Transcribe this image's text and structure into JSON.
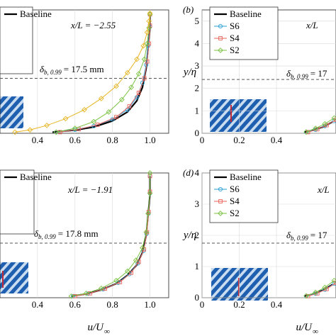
{
  "figure": {
    "x_axis_label_main": "u/U",
    "x_axis_label_sub": "∞",
    "y_axis_label": "y/η",
    "delta_symbol": "δ",
    "colors": {
      "baseline": "#000000",
      "S6": "#2a9fd6",
      "S4": "#e8635a",
      "S2": "#7cc242",
      "S2_top_left": "#e6b422",
      "dashed": "#555555",
      "inset_dark": "#1f5fb0",
      "inset_light": "#c9dcf0",
      "inset_marker": "#c0283a"
    }
  },
  "chart_data": [
    {
      "type": "line",
      "panel": "a",
      "panel_label": "",
      "annotation": "x/L = −2.55",
      "delta_label": "b, 0.99",
      "delta_value": "= 17.5 mm",
      "legend": [
        "Baseline",
        "",
        "",
        ""
      ],
      "xticks": [
        "0.4",
        "0.6",
        "0.8",
        "1.0"
      ],
      "yticks": [],
      "xlim": [
        0.2,
        1.1
      ],
      "ylim": [
        0,
        5.5
      ],
      "dashed_y": 2.45,
      "series": [
        {
          "name": "Baseline",
          "x": [
            0.48,
            0.6,
            0.7,
            0.8,
            0.88,
            0.93,
            0.96,
            0.98,
            0.99,
            1.0,
            1.0
          ],
          "y": [
            0.05,
            0.14,
            0.28,
            0.55,
            0.95,
            1.45,
            2.05,
            2.9,
            3.8,
            4.7,
            5.3
          ]
        },
        {
          "name": "S6",
          "x": [
            0.5,
            0.6,
            0.7,
            0.8,
            0.88,
            0.93,
            0.96,
            0.98,
            0.99,
            1.0,
            1.0
          ],
          "y": [
            0.05,
            0.16,
            0.32,
            0.62,
            1.05,
            1.6,
            2.25,
            3.05,
            3.9,
            4.75,
            5.3
          ]
        },
        {
          "name": "S4",
          "x": [
            0.52,
            0.62,
            0.72,
            0.82,
            0.89,
            0.94,
            0.97,
            0.985,
            0.995,
            1.0,
            1.0
          ],
          "y": [
            0.05,
            0.18,
            0.38,
            0.72,
            1.2,
            1.8,
            2.45,
            3.2,
            4.0,
            4.8,
            5.3
          ]
        },
        {
          "name": "S2",
          "x": [
            0.5,
            0.6,
            0.7,
            0.78,
            0.85,
            0.9,
            0.94,
            0.97,
            0.985,
            0.995,
            1.0
          ],
          "y": [
            0.05,
            0.22,
            0.52,
            0.95,
            1.5,
            2.05,
            2.65,
            3.3,
            4.0,
            4.7,
            5.3
          ]
        },
        {
          "name": "S2",
          "x": [
            0.28,
            0.36,
            0.45,
            0.55,
            0.65,
            0.74,
            0.82,
            0.88,
            0.93,
            0.965,
            0.985,
            0.995,
            1.0
          ],
          "y": [
            0.05,
            0.15,
            0.35,
            0.65,
            1.05,
            1.55,
            2.1,
            2.7,
            3.3,
            3.9,
            4.5,
            5.0,
            5.35
          ]
        }
      ]
    },
    {
      "type": "line",
      "panel": "b",
      "panel_label": "(b)",
      "annotation": "x/L",
      "delta_label": "b, 0.99",
      "delta_value": "= 17",
      "legend": [
        "Baseline",
        "S6",
        "S4",
        "S2"
      ],
      "xticks": [
        "0",
        "0.2",
        "0.4"
      ],
      "yticks": [
        "0",
        "1",
        "2",
        "3",
        "4",
        "5"
      ],
      "xlim": [
        0,
        0.72
      ],
      "ylim": [
        0,
        5.5
      ],
      "dashed_y": 2.4,
      "series": [
        {
          "name": "Baseline",
          "x": [
            0.55,
            0.6,
            0.65,
            0.7
          ],
          "y": [
            0.05,
            0.14,
            0.28,
            0.5
          ]
        },
        {
          "name": "S6",
          "x": [
            0.56,
            0.61,
            0.66,
            0.71
          ],
          "y": [
            0.05,
            0.16,
            0.32,
            0.55
          ]
        },
        {
          "name": "S4",
          "x": [
            0.57,
            0.62,
            0.67,
            0.72
          ],
          "y": [
            0.05,
            0.18,
            0.36,
            0.6
          ]
        },
        {
          "name": "S2",
          "x": [
            0.56,
            0.61,
            0.66,
            0.71
          ],
          "y": [
            0.06,
            0.22,
            0.42,
            0.68
          ]
        }
      ]
    },
    {
      "type": "line",
      "panel": "c",
      "panel_label": "",
      "annotation": "x/L = −1.91",
      "delta_label": "b, 0.99",
      "delta_value": "= 17.8 mm",
      "legend": [
        "Baseline",
        "",
        "",
        ""
      ],
      "xticks": [
        "0.4",
        "0.6",
        "0.8",
        "1.0"
      ],
      "yticks": [],
      "xlim": [
        0.2,
        1.1
      ],
      "ylim": [
        0,
        4
      ],
      "dashed_y": 1.75,
      "series": [
        {
          "name": "Baseline",
          "x": [
            0.58,
            0.66,
            0.74,
            0.82,
            0.88,
            0.93,
            0.96,
            0.98,
            0.99,
            1.0,
            1.0
          ],
          "y": [
            0.05,
            0.12,
            0.25,
            0.45,
            0.72,
            1.05,
            1.45,
            2.0,
            2.65,
            3.3,
            3.9
          ]
        },
        {
          "name": "S6",
          "x": [
            0.59,
            0.67,
            0.75,
            0.83,
            0.89,
            0.935,
            0.965,
            0.982,
            0.992,
            1.0,
            1.0
          ],
          "y": [
            0.05,
            0.13,
            0.27,
            0.48,
            0.76,
            1.1,
            1.5,
            2.05,
            2.7,
            3.35,
            3.9
          ]
        },
        {
          "name": "S4",
          "x": [
            0.6,
            0.68,
            0.76,
            0.84,
            0.9,
            0.94,
            0.968,
            0.984,
            0.993,
            1.0,
            1.0
          ],
          "y": [
            0.05,
            0.14,
            0.29,
            0.5,
            0.8,
            1.15,
            1.55,
            2.1,
            2.75,
            3.4,
            3.9
          ]
        },
        {
          "name": "S2",
          "x": [
            0.58,
            0.66,
            0.74,
            0.82,
            0.88,
            0.925,
            0.96,
            0.98,
            0.99,
            1.0,
            1.0
          ],
          "y": [
            0.05,
            0.14,
            0.3,
            0.55,
            0.85,
            1.2,
            1.6,
            2.1,
            2.7,
            3.35,
            4.0
          ]
        }
      ]
    },
    {
      "type": "line",
      "panel": "d",
      "panel_label": "(d)",
      "annotation": "x/L",
      "delta_label": "b, 0.99",
      "delta_value": "= 17",
      "legend": [
        "Baseline",
        "S6",
        "S4",
        "S2"
      ],
      "xticks": [
        "0",
        "0.2",
        "0.4"
      ],
      "yticks": [
        "0",
        "1",
        "2",
        "3",
        "4"
      ],
      "xlim": [
        0,
        0.72
      ],
      "ylim": [
        0,
        4
      ],
      "dashed_y": 1.75,
      "series": [
        {
          "name": "Baseline",
          "x": [
            0.55,
            0.6,
            0.65,
            0.7
          ],
          "y": [
            0.05,
            0.12,
            0.24,
            0.42
          ]
        },
        {
          "name": "S6",
          "x": [
            0.56,
            0.61,
            0.66,
            0.71
          ],
          "y": [
            0.05,
            0.13,
            0.26,
            0.45
          ]
        },
        {
          "name": "S4",
          "x": [
            0.57,
            0.62,
            0.67,
            0.72
          ],
          "y": [
            0.05,
            0.14,
            0.28,
            0.48
          ]
        },
        {
          "name": "S2",
          "x": [
            0.56,
            0.61,
            0.66,
            0.71
          ],
          "y": [
            0.06,
            0.17,
            0.33,
            0.55
          ]
        }
      ]
    }
  ]
}
